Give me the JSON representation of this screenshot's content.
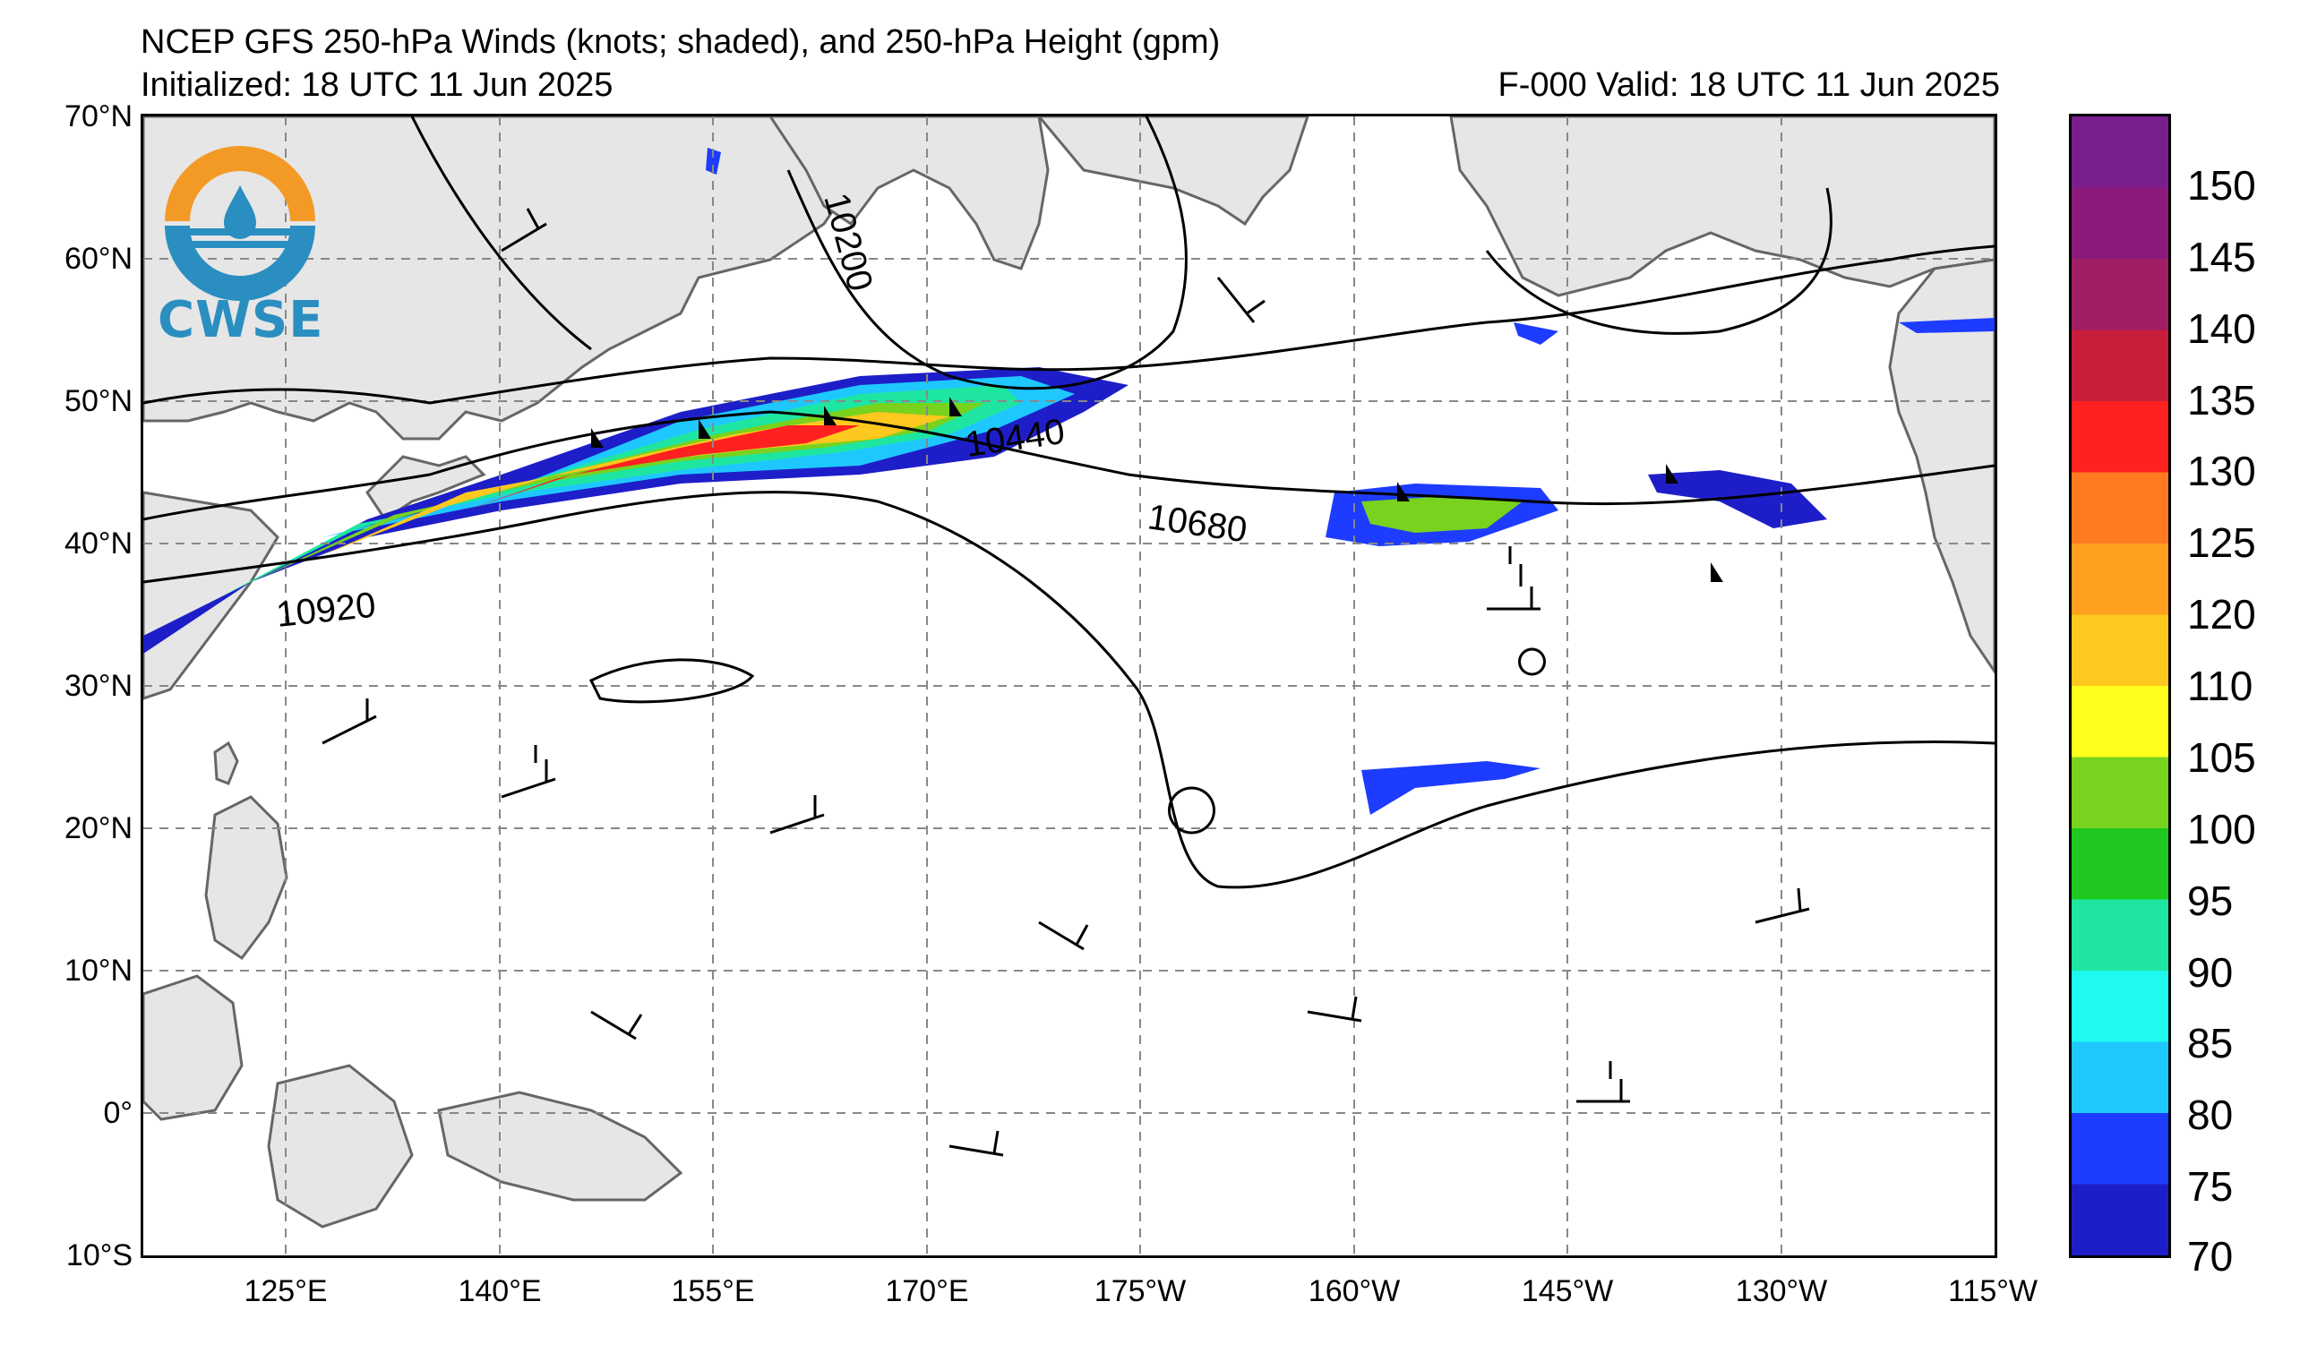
{
  "title": {
    "line1": "NCEP GFS 250-hPa Winds (knots; shaded), and 250-hPa Height (gpm)",
    "initialized": "Initialized: 18 UTC 11 Jun 2025",
    "valid": "F-000  Valid: 18 UTC 11 Jun 2025"
  },
  "logo": {
    "text": "CWSE",
    "colors": {
      "orange": "#f39a26",
      "blue": "#2a8fc0"
    }
  },
  "axes": {
    "lat_labels": [
      "70°N",
      "60°N",
      "50°N",
      "40°N",
      "30°N",
      "20°N",
      "10°N",
      "0°",
      "10°S"
    ],
    "lat_values": [
      70,
      60,
      50,
      40,
      30,
      20,
      10,
      0,
      -10
    ],
    "lon_labels": [
      "125°E",
      "140°E",
      "155°E",
      "170°E",
      "175°W",
      "160°W",
      "145°W",
      "130°W",
      "115°W"
    ],
    "lon_values": [
      125,
      140,
      155,
      170,
      185,
      200,
      215,
      230,
      245
    ],
    "lon_range": [
      115,
      245
    ],
    "lat_range": [
      -10,
      70
    ],
    "grid": true
  },
  "contours": {
    "labels": [
      "10200",
      "10440",
      "10680",
      "10920"
    ]
  },
  "colorbar": {
    "labels": [
      "150",
      "145",
      "140",
      "135",
      "130",
      "125",
      "120",
      "110",
      "105",
      "100",
      "95",
      "90",
      "85",
      "80",
      "75",
      "70"
    ],
    "colors": [
      "#7a1e8f",
      "#8b1a7a",
      "#a01e64",
      "#c81e3c",
      "#ff2020",
      "#ff7a20",
      "#ffa020",
      "#ffc81e",
      "#ffff1e",
      "#78d21e",
      "#1ec81e",
      "#1ee6a0",
      "#1efaf0",
      "#1ec8ff",
      "#1e3cff",
      "#1e1ec8"
    ],
    "range": [
      70,
      155
    ]
  }
}
